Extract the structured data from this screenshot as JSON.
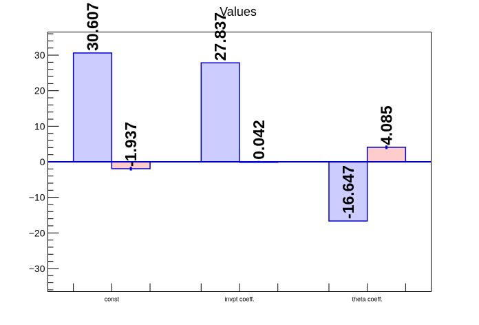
{
  "chart_data": {
    "type": "bar",
    "title": "Values",
    "xlabel": "",
    "ylabel": "",
    "categories": [
      "const",
      "invpt coeff.",
      "theta coeff."
    ],
    "series": [
      {
        "values": [
          30.607,
          27.837,
          -16.647
        ],
        "labels": [
          "30.607",
          "27.837",
          "-16.647"
        ],
        "error": [
          0.0,
          0.0,
          0.0
        ]
      },
      {
        "values": [
          -1.937,
          0.042,
          4.085
        ],
        "labels": [
          "-1.937",
          "0.042",
          "4.085"
        ],
        "error": [
          0.5,
          0.2,
          0.5
        ]
      }
    ],
    "ylim": [
      -36.5,
      36.5
    ],
    "yticks": [
      -30,
      -20,
      -10,
      0,
      10,
      20,
      30
    ],
    "ytick_labels": [
      "−30",
      "−20",
      "−10",
      "0",
      "10",
      "20",
      "30"
    ],
    "grid": false,
    "legend": "none",
    "colors": {
      "series0_fill": "#ccccff",
      "series1_fill": "#ffcccc",
      "bar_stroke": "#0000cc",
      "axis": "#000000",
      "zero_line": "#0000cc"
    }
  }
}
